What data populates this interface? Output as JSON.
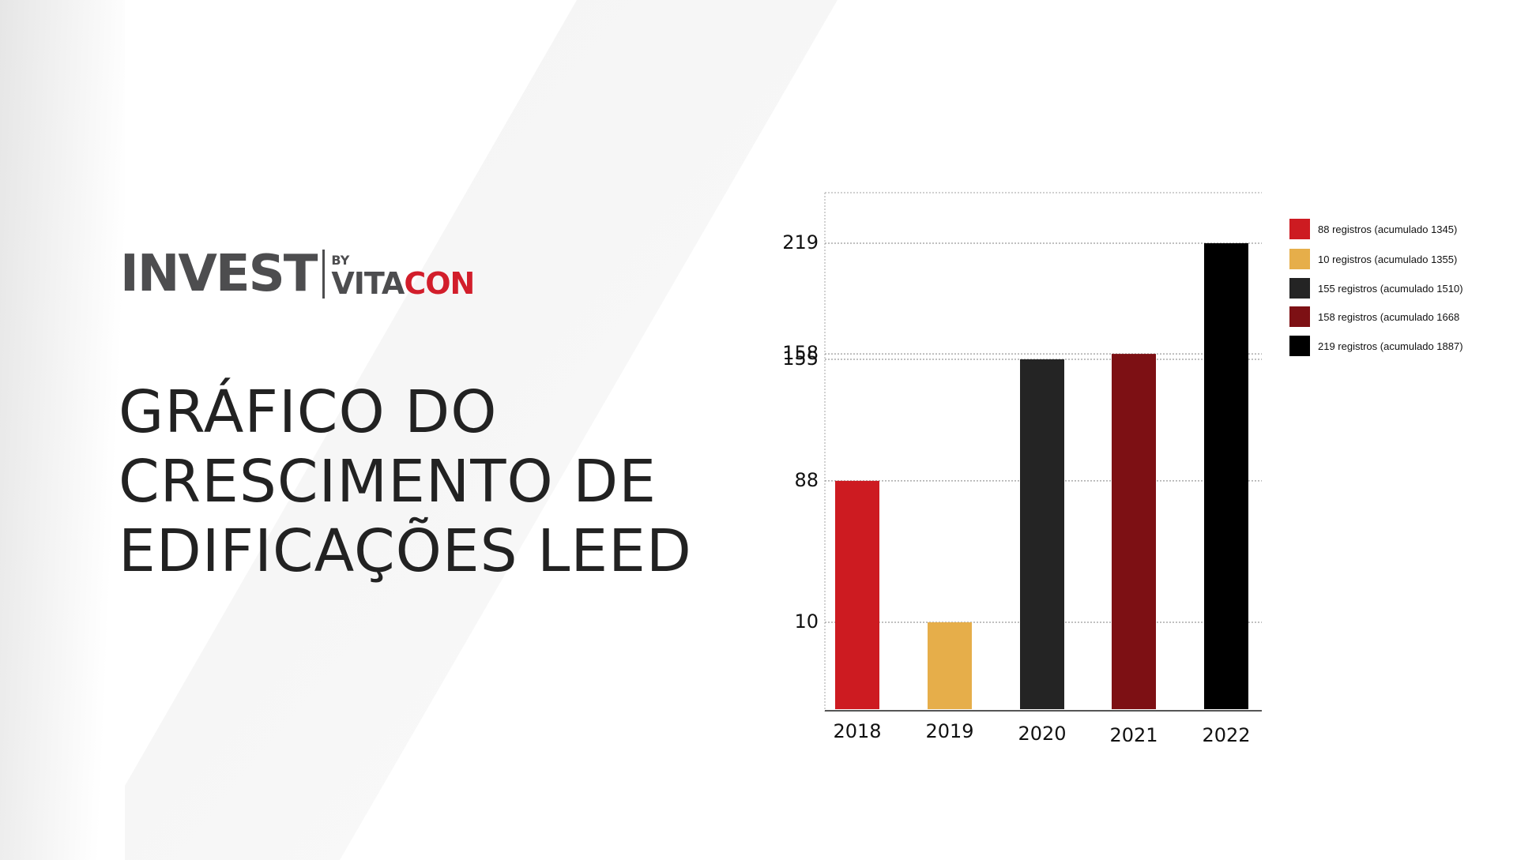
{
  "branding": {
    "logo_main": "INVEST",
    "logo_by": "BY",
    "logo_brand_a": "VITA",
    "logo_brand_b": "CON"
  },
  "title_lines": [
    "GRÁFICO DO",
    "CRESCIMENTO DE",
    "EDIFICAÇÕES LEED"
  ],
  "colors": {
    "brand_red": "#d21e2b",
    "logo_gray": "#4d4d4f",
    "text_dark": "#222222"
  },
  "chart_data": {
    "type": "bar",
    "categories": [
      "2018",
      "2019",
      "2020",
      "2021",
      "2022"
    ],
    "values": [
      88,
      10,
      155,
      158,
      219
    ],
    "bar_colors": [
      "#cd1b21",
      "#e6ae4a",
      "#242424",
      "#7d1014",
      "#000000"
    ],
    "y_ticks": [
      10,
      88,
      155,
      158,
      219
    ],
    "ylim": [
      -65,
      241
    ],
    "grid": "dotted horizontal",
    "legend_position": "right",
    "legend": [
      {
        "label": "88 registros (acumulado 1345)",
        "color": "#cd1b21"
      },
      {
        "label": "10 registros (acumulado 1355)",
        "color": "#e6ae4a"
      },
      {
        "label": "155 registros (acumulado 1510)",
        "color": "#242424"
      },
      {
        "label": "158 registros (acumulado 1668",
        "color": "#7d1014"
      },
      {
        "label": "219 registros (acumulado 1887)",
        "color": "#000000"
      }
    ],
    "title": "",
    "xlabel": "",
    "ylabel": ""
  }
}
